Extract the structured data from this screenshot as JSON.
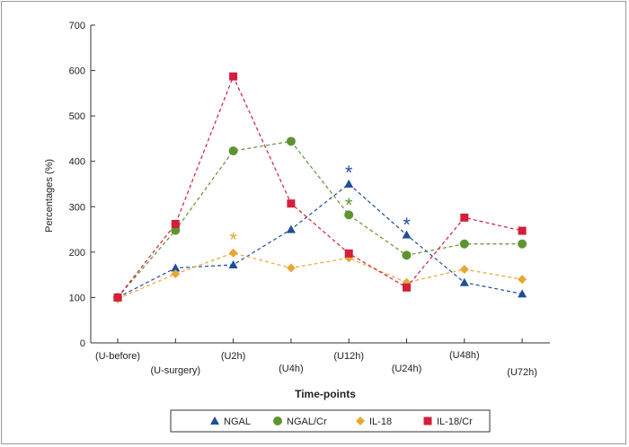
{
  "chart_data": {
    "type": "line",
    "title": "",
    "xlabel": "Time-points",
    "ylabel": "Percentages (%)",
    "ylim": [
      0,
      700
    ],
    "yticks": [
      0,
      100,
      200,
      300,
      400,
      500,
      600,
      700
    ],
    "categories": [
      "(U-before)",
      "(U-surgery)",
      "(U2h)",
      "(U4h)",
      "(U12h)",
      "(U24h)",
      "(U48h)",
      "(U72h)"
    ],
    "series": [
      {
        "name": "NGAL",
        "color": "#1f4e9a",
        "marker": "triangle",
        "values": [
          100,
          165,
          172,
          250,
          350,
          238,
          133,
          108
        ]
      },
      {
        "name": "NGAL/Cr",
        "color": "#5e9432",
        "marker": "circle",
        "values": [
          100,
          248,
          423,
          444,
          282,
          193,
          218,
          218
        ]
      },
      {
        "name": "IL-18",
        "color": "#e8a735",
        "marker": "diamond",
        "values": [
          97,
          152,
          198,
          165,
          187,
          133,
          162,
          140
        ]
      },
      {
        "name": "IL-18/Cr",
        "color": "#d21f3c",
        "marker": "square",
        "values": [
          100,
          262,
          587,
          307,
          197,
          122,
          276,
          247
        ]
      }
    ],
    "annotations": [
      {
        "text": "*",
        "category": "(U2h)",
        "y": 232,
        "color": "#e8a735"
      },
      {
        "text": "*",
        "category": "(U12h)",
        "y": 380,
        "color": "#1f4e9a"
      },
      {
        "text": "*",
        "category": "(U12h)",
        "y": 308,
        "color": "#5e9432"
      },
      {
        "text": "*",
        "category": "(U24h)",
        "y": 265,
        "color": "#1f4e9a"
      }
    ]
  }
}
